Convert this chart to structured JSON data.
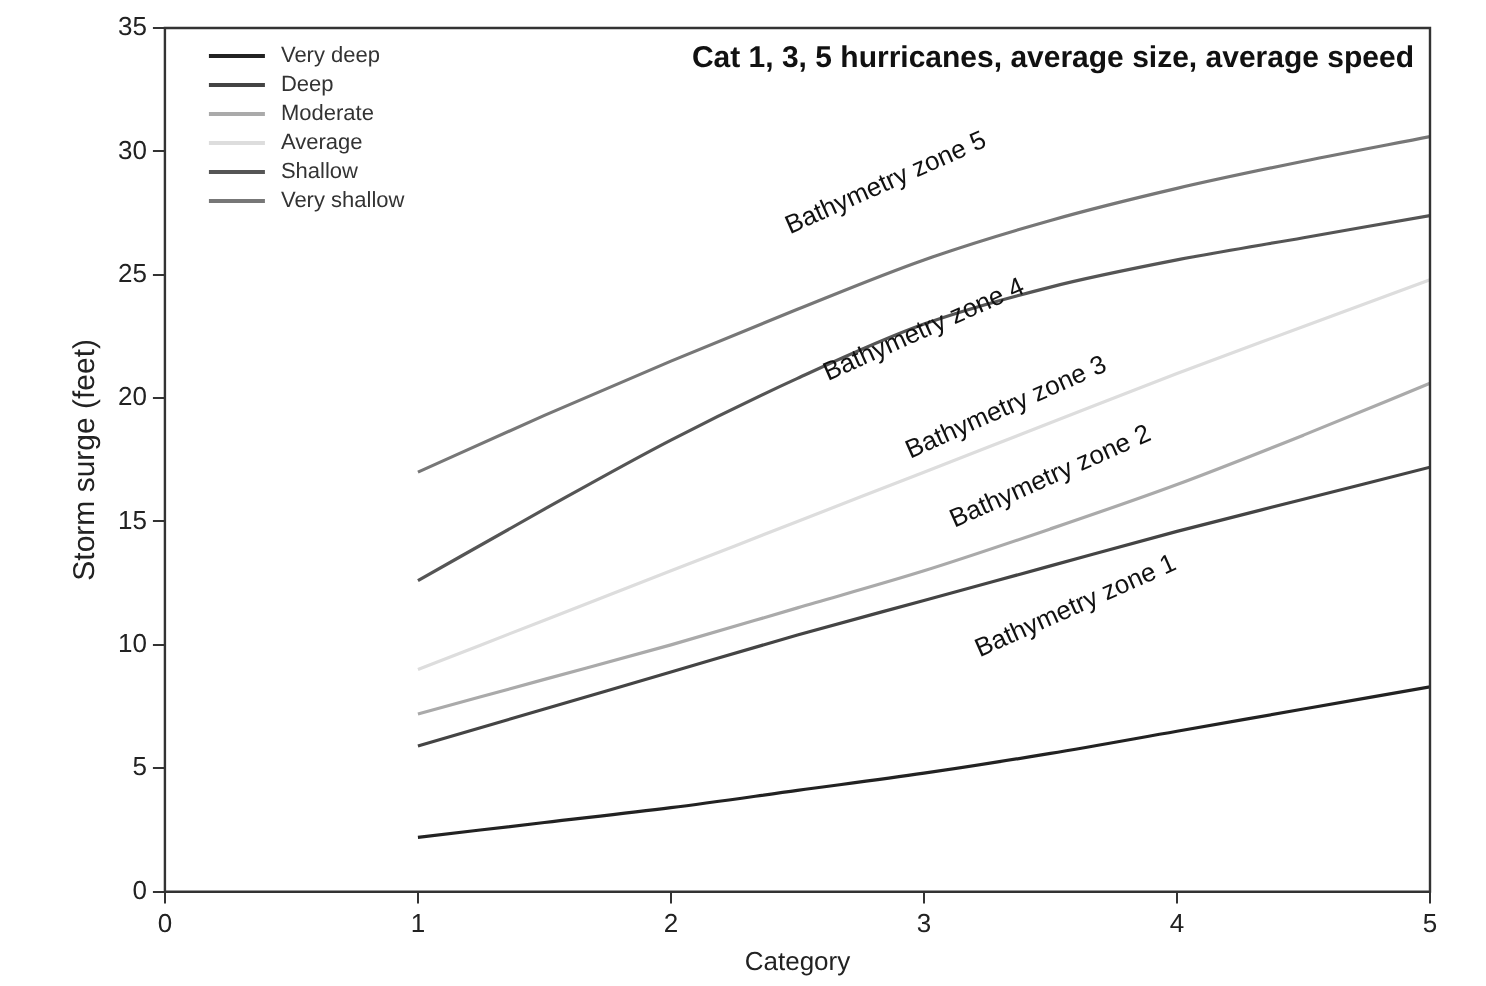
{
  "chart_data": {
    "type": "line",
    "title": "Cat 1, 3, 5 hurricanes, average size, average speed",
    "xlabel": "Category",
    "ylabel": "Storm surge (feet)",
    "x": [
      1,
      1.5,
      2,
      2.5,
      3,
      3.5,
      4,
      4.5,
      5
    ],
    "series": [
      {
        "name": "Very deep",
        "color": "#222222",
        "values": [
          2.2,
          2.8,
          3.4,
          4.1,
          4.8,
          5.6,
          6.5,
          7.4,
          8.3
        ]
      },
      {
        "name": "Deep",
        "color": "#444444",
        "values": [
          5.9,
          7.4,
          8.9,
          10.4,
          11.8,
          13.2,
          14.6,
          15.9,
          17.2
        ]
      },
      {
        "name": "Moderate",
        "color": "#aaaaaa",
        "values": [
          7.2,
          8.6,
          10.0,
          11.5,
          13.0,
          14.7,
          16.5,
          18.5,
          20.6
        ]
      },
      {
        "name": "Average",
        "color": "#dddddd",
        "values": [
          9.0,
          11.0,
          13.0,
          15.0,
          17.0,
          19.0,
          21.0,
          22.9,
          24.8
        ]
      },
      {
        "name": "Shallow",
        "color": "#555555",
        "values": [
          12.6,
          15.5,
          18.3,
          20.8,
          23.0,
          24.5,
          25.6,
          26.5,
          27.4
        ]
      },
      {
        "name": "Very shallow",
        "color": "#777777",
        "values": [
          17.0,
          19.3,
          21.5,
          23.6,
          25.6,
          27.2,
          28.5,
          29.6,
          30.6
        ]
      }
    ],
    "xlim": [
      0,
      5
    ],
    "xticks": [
      0,
      1,
      2,
      3,
      4,
      5
    ],
    "ylim": [
      0,
      35
    ],
    "yticks": [
      0,
      5,
      10,
      15,
      20,
      25,
      30,
      35
    ],
    "grid": false,
    "legend": "top left",
    "marker": "none",
    "line_style": "solid",
    "annotations": [
      "Bathymetry zone 5",
      "Bathymetry zone 4",
      "Bathymetry zone 3",
      "Bathymetry zone 2",
      "Bathymetry zone 1"
    ]
  }
}
